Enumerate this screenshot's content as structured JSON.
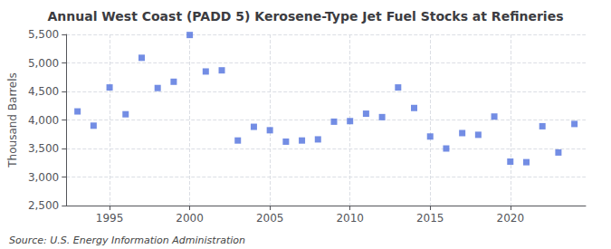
{
  "chart_data": {
    "type": "scatter",
    "title": "Annual West Coast (PADD 5) Kerosene-Type Jet Fuel Stocks at Refineries",
    "ylabel": "Thousand Barrels",
    "annotations": [
      "Source: U.S. Energy Information Administration"
    ],
    "x": [
      1993,
      1994,
      1995,
      1996,
      1997,
      1998,
      1999,
      2000,
      2001,
      2002,
      2003,
      2004,
      2005,
      2006,
      2007,
      2008,
      2009,
      2010,
      2011,
      2012,
      2013,
      2014,
      2015,
      2016,
      2017,
      2018,
      2019,
      2020,
      2021,
      2022,
      2023,
      2024
    ],
    "values": [
      4150,
      3900,
      4570,
      4100,
      5090,
      4560,
      4670,
      5490,
      4850,
      4870,
      3640,
      3880,
      3820,
      3620,
      3640,
      3660,
      3970,
      3980,
      4110,
      4050,
      4570,
      4210,
      3710,
      3500,
      3770,
      3740,
      4060,
      3270,
      3260,
      3890,
      3430,
      3930
    ],
    "marker": "square",
    "xlim": [
      1992.3,
      2024.7
    ],
    "xticks": [
      1995,
      2000,
      2005,
      2010,
      2015,
      2020
    ],
    "ylim": [
      2500,
      5500
    ],
    "yticks": [
      {
        "value": 2500,
        "label": "2,500"
      },
      {
        "value": 3000,
        "label": "3,000"
      },
      {
        "value": 3500,
        "label": "3,500"
      },
      {
        "value": 4000,
        "label": "4,000"
      },
      {
        "value": 4500,
        "label": "4,500"
      },
      {
        "value": 5000,
        "label": "5,000"
      },
      {
        "value": 5500,
        "label": "5,500"
      }
    ],
    "grid": true
  }
}
